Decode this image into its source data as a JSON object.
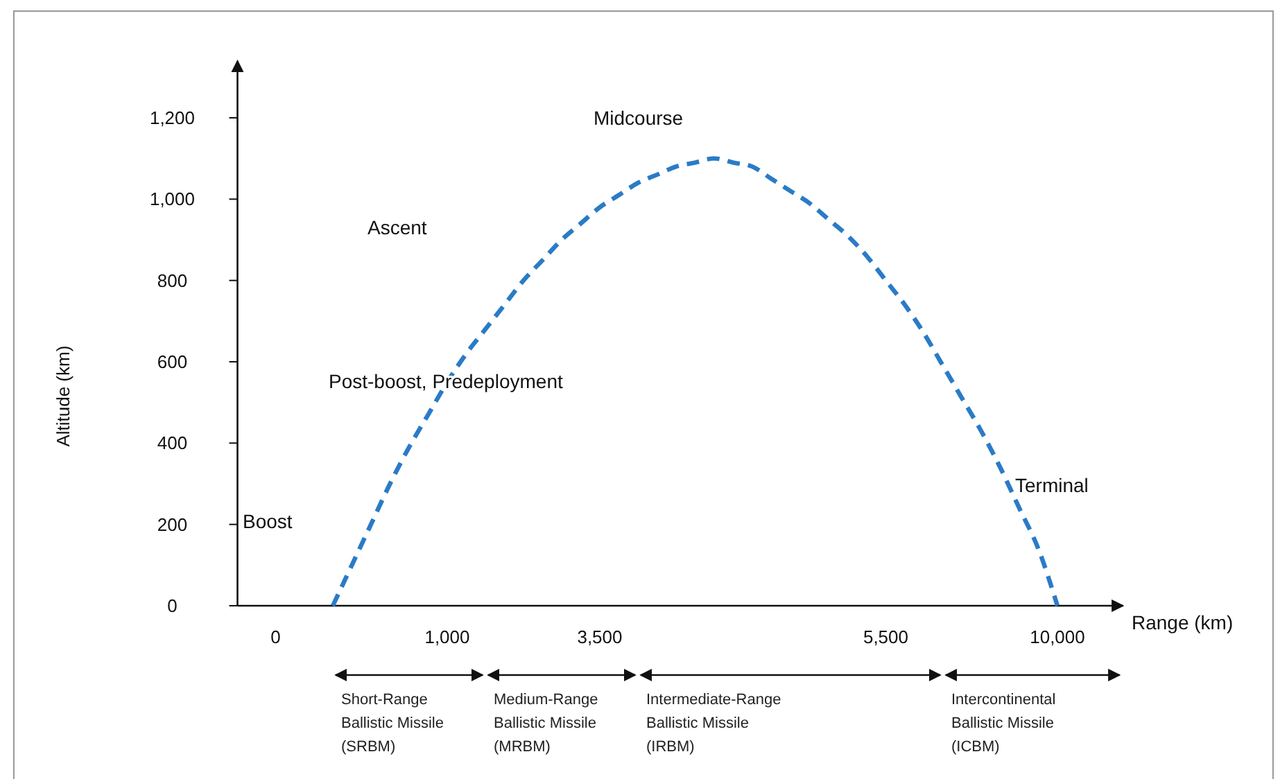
{
  "chart_data": {
    "type": "line",
    "xlabel": "Range (km)",
    "ylabel": "Altitude (km)",
    "categories": [
      null,
      null,
      "0",
      null,
      null,
      null,
      null,
      null,
      null,
      null,
      null,
      "1,000",
      null,
      null,
      null,
      null,
      null,
      null,
      null,
      "3,500",
      null,
      null,
      null,
      null,
      null,
      null,
      null,
      null,
      null,
      null,
      null,
      null,
      null,
      null,
      "5,500",
      null,
      null,
      null,
      null,
      null,
      null,
      null,
      null,
      "10,000",
      null,
      null,
      null
    ],
    "series": [
      {
        "color": "#2a7bc6",
        "values": [
          null,
          null,
          null,
          null,
          null,
          0,
          100,
          200,
          300,
          390,
          470,
          550,
          620,
          680,
          740,
          800,
          850,
          900,
          940,
          980,
          1010,
          1040,
          1060,
          1080,
          1090,
          1100,
          1090,
          1080,
          1050,
          1020,
          990,
          950,
          910,
          860,
          800,
          740,
          670,
          590,
          510,
          430,
          340,
          240,
          140,
          0,
          null,
          null,
          null
        ]
      }
    ],
    "ylim": [
      0,
      1340
    ],
    "yticks": [
      0,
      200,
      400,
      600,
      800,
      {
        "value": 1000,
        "label": "1,000"
      },
      {
        "value": 1200,
        "label": "1,200"
      }
    ],
    "grid": false,
    "marker": "none",
    "line_style": "dashed",
    "annotations": [
      "Boost",
      "Ascent",
      "Post-boost, Predeployment",
      "Midcourse",
      "Terminal",
      "Short-Range\nBallistic Missile\n(SRBM)",
      "Medium-Range\nBallistic Missile\n(MRBM)",
      "Intermediate-Range\nBallistic Missile\n(IRBM)",
      "Intercontinental\nBallistic Missile\n(ICBM)"
    ]
  }
}
